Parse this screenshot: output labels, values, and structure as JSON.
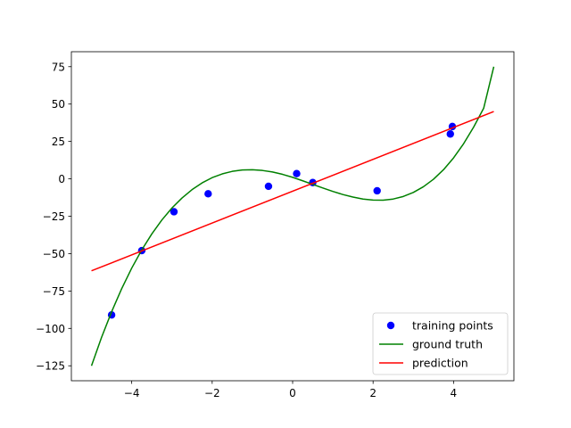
{
  "chart_data": {
    "type": "line",
    "title": "",
    "xlabel": "",
    "ylabel": "",
    "xlim": [
      -5.5,
      5.5
    ],
    "ylim": [
      -135,
      85
    ],
    "xticks": [
      -4,
      -2,
      0,
      2,
      4
    ],
    "xtick_labels": [
      "−4",
      "−2",
      "0",
      "2",
      "4"
    ],
    "yticks": [
      -125,
      -100,
      -75,
      -50,
      -25,
      0,
      25,
      50,
      75
    ],
    "ytick_labels": [
      "−125",
      "−100",
      "−75",
      "−50",
      "−25",
      "0",
      "25",
      "50",
      "75"
    ],
    "grid": false,
    "legend_position": "lower-right",
    "series": [
      {
        "name": "training points",
        "kind": "scatter",
        "color": "#0000ff",
        "x": [
          -4.5,
          -3.75,
          -2.95,
          -2.1,
          -0.6,
          0.1,
          0.5,
          2.1,
          3.92,
          3.97
        ],
        "y": [
          -91,
          -48,
          -22,
          -10,
          -5,
          3.5,
          -2.5,
          -8,
          30,
          35
        ]
      },
      {
        "name": "ground truth",
        "kind": "line",
        "color": "#008000",
        "x": [
          -5.0,
          -4.75,
          -4.5,
          -4.25,
          -4.0,
          -3.75,
          -3.5,
          -3.25,
          -3.0,
          -2.75,
          -2.5,
          -2.25,
          -2.0,
          -1.75,
          -1.5,
          -1.25,
          -1.0,
          -0.75,
          -0.5,
          -0.25,
          0.0,
          0.25,
          0.5,
          0.75,
          1.0,
          1.25,
          1.5,
          1.75,
          2.0,
          2.25,
          2.5,
          2.75,
          3.0,
          3.25,
          3.5,
          3.75,
          4.0,
          4.25,
          4.5,
          4.75,
          5.0
        ],
        "y": [
          -125.0,
          -106.0,
          -88.9,
          -73.5,
          -59.7,
          -47.5,
          -36.8,
          -27.5,
          -19.5,
          -12.8,
          -7.2,
          -2.7,
          0.8,
          3.3,
          5.0,
          5.9,
          6.1,
          5.6,
          4.6,
          3.0,
          1.0,
          -1.3,
          -3.7,
          -6.1,
          -8.4,
          -10.5,
          -12.2,
          -13.5,
          -14.2,
          -14.3,
          -13.5,
          -11.8,
          -9.1,
          -5.3,
          -0.3,
          6.1,
          14.0,
          23.5,
          34.6,
          47.3,
          75.0
        ]
      },
      {
        "name": "prediction",
        "kind": "line",
        "color": "#ff0000",
        "x": [
          -5.0,
          5.0
        ],
        "y": [
          -61.5,
          45.0
        ]
      }
    ]
  },
  "legend": {
    "items": [
      "training points",
      "ground truth",
      "prediction"
    ]
  }
}
